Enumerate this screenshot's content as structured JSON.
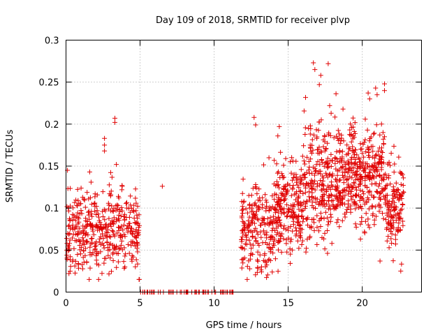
{
  "chart_data": {
    "type": "scatter",
    "title": "Day 109 of 2018, SRMTID for receiver plvp",
    "xlabel": "GPS time / hours",
    "ylabel": "SRMTID / TECUs",
    "xlim": [
      0,
      24
    ],
    "ylim": [
      0,
      0.3
    ],
    "xticks": [
      0,
      5,
      10,
      15,
      20
    ],
    "yticks": [
      0,
      0.05,
      0.1,
      0.15,
      0.2,
      0.25,
      0.3
    ],
    "xtick_labels": [
      "0",
      "5",
      "10",
      "15",
      "20"
    ],
    "ytick_labels": [
      "0",
      "0.05",
      "0.1",
      "0.15",
      "0.2",
      "0.25",
      "0.3"
    ],
    "grid": true,
    "marker": "+",
    "color": "#e00000",
    "series": [
      {
        "segments": [
          {
            "x_start": 0.0,
            "x_end": 4.95,
            "mean": 0.072,
            "spread": 0.028,
            "count": 420
          },
          {
            "x_start": 11.8,
            "x_end": 14.0,
            "mean": 0.075,
            "spread": 0.032,
            "count": 200
          },
          {
            "x_start": 14.0,
            "x_end": 16.0,
            "mean": 0.1,
            "spread": 0.032,
            "count": 230
          },
          {
            "x_start": 16.0,
            "x_end": 19.0,
            "mean": 0.132,
            "spread": 0.04,
            "count": 340
          },
          {
            "x_start": 19.0,
            "x_end": 21.5,
            "mean": 0.138,
            "spread": 0.035,
            "count": 300
          },
          {
            "x_start": 21.5,
            "x_end": 22.8,
            "mean": 0.105,
            "spread": 0.035,
            "count": 140
          }
        ],
        "zero_segment": {
          "x_start": 5.0,
          "x_end": 11.8,
          "value": 0,
          "count": 60
        },
        "peaks": [
          {
            "x": 0.1,
            "y": 0.145
          },
          {
            "x": 1.6,
            "y": 0.143
          },
          {
            "x": 2.6,
            "y": 0.183
          },
          {
            "x": 2.6,
            "y": 0.175
          },
          {
            "x": 2.6,
            "y": 0.168
          },
          {
            "x": 3.3,
            "y": 0.207
          },
          {
            "x": 3.3,
            "y": 0.202
          },
          {
            "x": 3.4,
            "y": 0.152
          },
          {
            "x": 2.2,
            "y": 0.015
          },
          {
            "x": 6.5,
            "y": 0.126
          },
          {
            "x": 12.7,
            "y": 0.208
          },
          {
            "x": 12.8,
            "y": 0.199
          },
          {
            "x": 12.8,
            "y": 0.128
          },
          {
            "x": 13.7,
            "y": 0.16
          },
          {
            "x": 14.4,
            "y": 0.197
          },
          {
            "x": 14.3,
            "y": 0.186
          },
          {
            "x": 16.7,
            "y": 0.273
          },
          {
            "x": 16.8,
            "y": 0.265
          },
          {
            "x": 17.7,
            "y": 0.272
          },
          {
            "x": 17.2,
            "y": 0.258
          },
          {
            "x": 17.1,
            "y": 0.247
          },
          {
            "x": 17.8,
            "y": 0.222
          },
          {
            "x": 17.9,
            "y": 0.213
          },
          {
            "x": 16.5,
            "y": 0.198
          },
          {
            "x": 18.7,
            "y": 0.218
          },
          {
            "x": 19.2,
            "y": 0.2
          },
          {
            "x": 20.4,
            "y": 0.237
          },
          {
            "x": 20.5,
            "y": 0.23
          },
          {
            "x": 20.9,
            "y": 0.243
          },
          {
            "x": 21.0,
            "y": 0.235
          },
          {
            "x": 21.5,
            "y": 0.248
          },
          {
            "x": 21.5,
            "y": 0.24
          },
          {
            "x": 21.3,
            "y": 0.2
          },
          {
            "x": 21.4,
            "y": 0.19
          },
          {
            "x": 21.5,
            "y": 0.185
          },
          {
            "x": 21.2,
            "y": 0.037
          },
          {
            "x": 22.6,
            "y": 0.025
          },
          {
            "x": 13.2,
            "y": 0.03
          },
          {
            "x": 13.2,
            "y": 0.024
          },
          {
            "x": 0.2,
            "y": 0.022
          }
        ]
      }
    ]
  }
}
